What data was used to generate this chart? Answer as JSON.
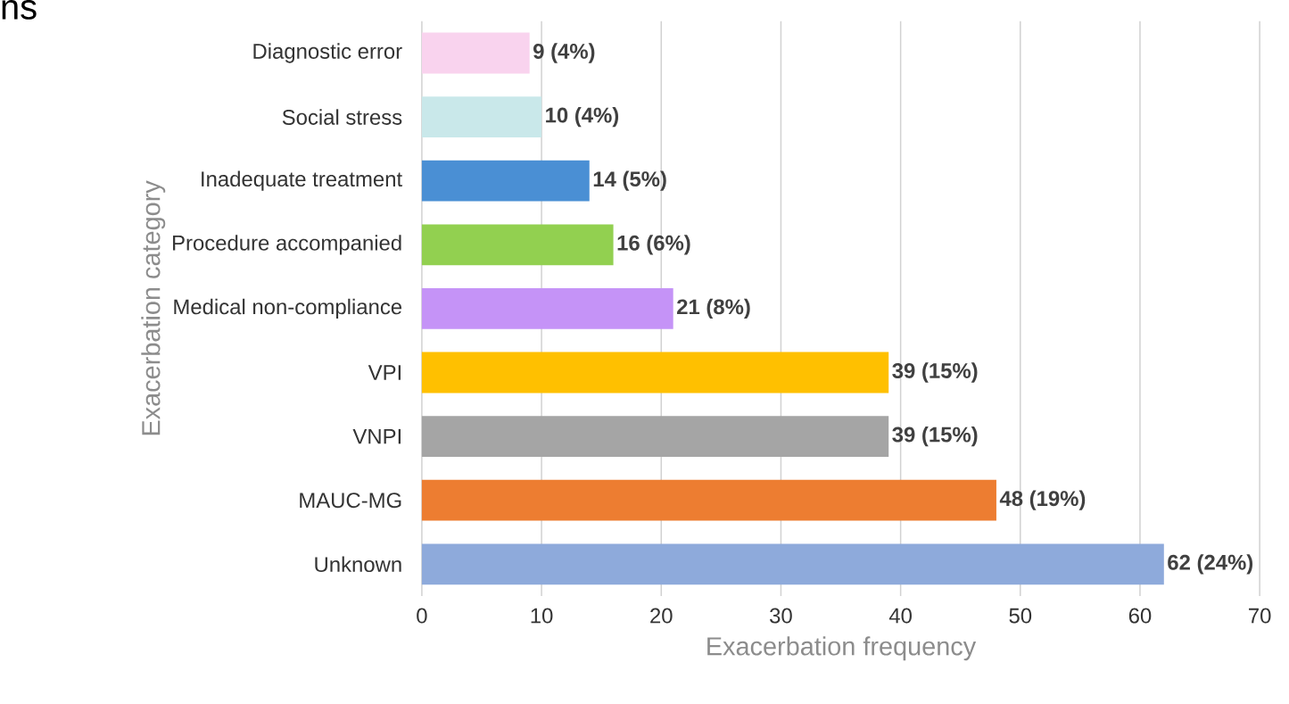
{
  "chart_data": {
    "type": "bar",
    "orientation": "horizontal",
    "title": "ns",
    "xlabel": "Exacerbation frequency",
    "ylabel": "Exacerbation category",
    "categories": [
      "Diagnostic error",
      "Social stress",
      "Inadequate treatment",
      "Procedure accompanied",
      "Medical non-compliance",
      "VPI",
      "VNPI",
      "MAUC-MG",
      "Unknown"
    ],
    "values": [
      9,
      10,
      14,
      16,
      21,
      39,
      39,
      48,
      62
    ],
    "value_labels": [
      "9 (4%)",
      "10 (4%)",
      "14 (5%)",
      "16 (6%)",
      "21 (8%)",
      "39 (15%)",
      "39 (15%)",
      "48 (19%)",
      "62 (24%)"
    ],
    "colors": [
      "#f9d3ee",
      "#c9e8ea",
      "#4a8fd4",
      "#92d050",
      "#c593f7",
      "#ffc000",
      "#a5a5a5",
      "#ed7d31",
      "#8eaadb"
    ],
    "xlim": [
      0,
      70
    ],
    "xticks": [
      0,
      10,
      20,
      30,
      40,
      50,
      60,
      70
    ],
    "grid": "x"
  }
}
